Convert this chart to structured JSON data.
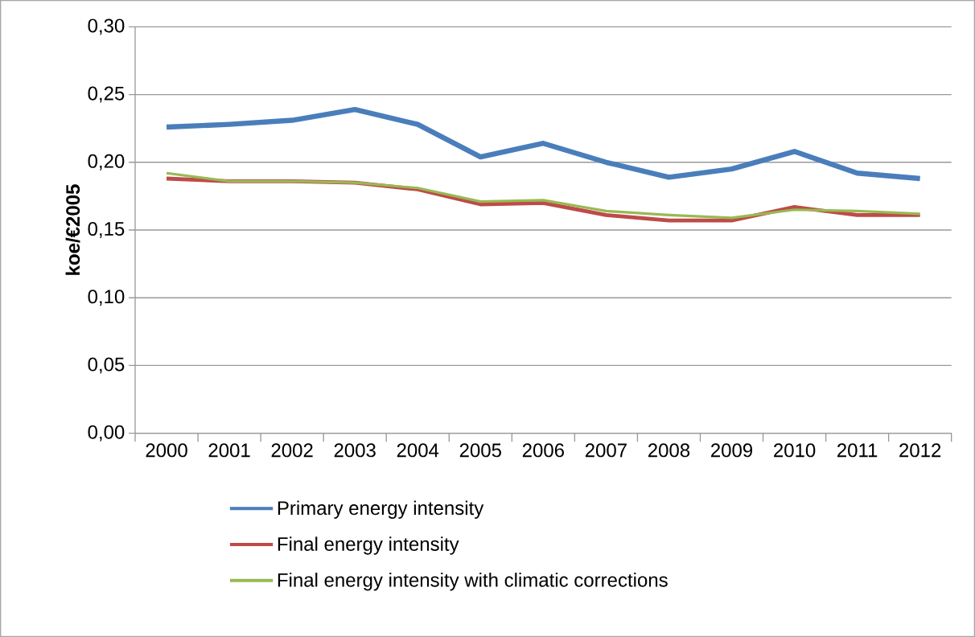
{
  "chart_data": {
    "type": "line",
    "ylabel": "koe/€2005",
    "categories": [
      "2000",
      "2001",
      "2002",
      "2003",
      "2004",
      "2005",
      "2006",
      "2007",
      "2008",
      "2009",
      "2010",
      "2011",
      "2012"
    ],
    "series": [
      {
        "name": "Primary energy intensity",
        "color": "#4a7ebb",
        "values": [
          0.226,
          0.228,
          0.231,
          0.239,
          0.228,
          0.204,
          0.214,
          0.2,
          0.189,
          0.195,
          0.208,
          0.192,
          0.188
        ]
      },
      {
        "name": "Final energy intensity",
        "color": "#be4b48",
        "values": [
          0.188,
          0.186,
          0.186,
          0.185,
          0.18,
          0.169,
          0.17,
          0.161,
          0.157,
          0.157,
          0.167,
          0.161,
          0.161
        ]
      },
      {
        "name": "Final energy intensity with climatic corrections",
        "color": "#98b954",
        "values": [
          0.192,
          0.186,
          0.186,
          0.185,
          0.181,
          0.171,
          0.172,
          0.164,
          0.161,
          0.159,
          0.165,
          0.164,
          0.162
        ]
      }
    ],
    "ylim": [
      0,
      0.3
    ],
    "yticks": [
      {
        "value": 0,
        "label": "0,00"
      },
      {
        "value": 0.05,
        "label": "0,05"
      },
      {
        "value": 0.1,
        "label": "0,10"
      },
      {
        "value": 0.15,
        "label": "0,15"
      },
      {
        "value": 0.2,
        "label": "0,20"
      },
      {
        "value": 0.25,
        "label": "0,25"
      },
      {
        "value": 0.3,
        "label": "0,30"
      }
    ],
    "grid": "y",
    "legend": "bottom",
    "line_style": "solid"
  }
}
